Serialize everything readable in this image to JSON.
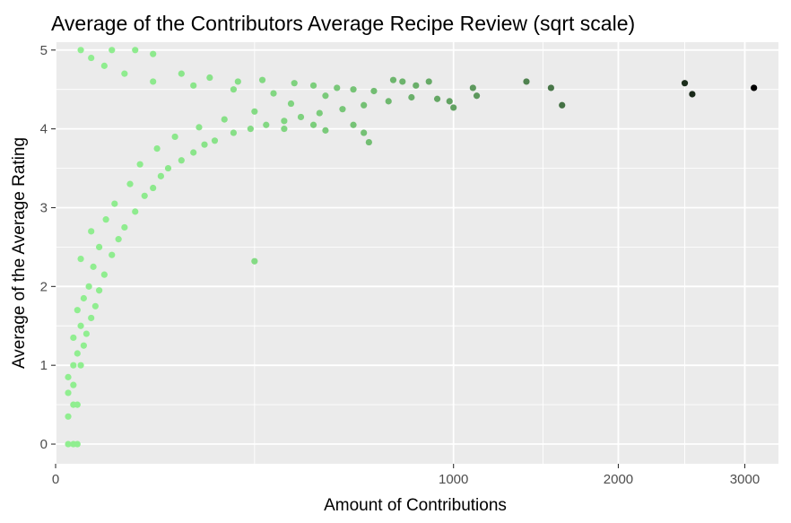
{
  "chart_data": {
    "type": "scatter",
    "title": "Average of the Contributors Average Recipe Review (sqrt scale)",
    "xlabel": "Amount of Contributions",
    "ylabel": "Average of the Average Rating",
    "x_scale": "sqrt",
    "xlim": [
      0,
      3300
    ],
    "ylim": [
      -0.25,
      5.1
    ],
    "x_ticks": [
      0,
      1000,
      2000,
      3000
    ],
    "x_tick_labels": [
      "0",
      "1000",
      "2000",
      "3000"
    ],
    "x_minor_ticks": [
      250,
      1500,
      2500
    ],
    "y_ticks": [
      0,
      1,
      2,
      3,
      4,
      5
    ],
    "y_tick_labels": [
      "0",
      "1",
      "2",
      "3",
      "4",
      "5"
    ],
    "grid": true,
    "legend": "none",
    "color_scale": {
      "low": "#90EE90",
      "high": "#000000",
      "variable": "Amount of Contributions"
    },
    "panel_background": "#EBEBEB",
    "grid_color": "#FFFFFF",
    "points": [
      {
        "x": 1,
        "y": 0
      },
      {
        "x": 2,
        "y": 0
      },
      {
        "x": 3,
        "y": 0
      },
      {
        "x": 1,
        "y": 0.35
      },
      {
        "x": 2,
        "y": 0.5
      },
      {
        "x": 3,
        "y": 0.5
      },
      {
        "x": 1,
        "y": 0.65
      },
      {
        "x": 2,
        "y": 0.75
      },
      {
        "x": 1,
        "y": 0.85
      },
      {
        "x": 2,
        "y": 1.0
      },
      {
        "x": 4,
        "y": 1.0
      },
      {
        "x": 3,
        "y": 1.15
      },
      {
        "x": 5,
        "y": 1.25
      },
      {
        "x": 2,
        "y": 1.35
      },
      {
        "x": 6,
        "y": 1.4
      },
      {
        "x": 4,
        "y": 1.5
      },
      {
        "x": 8,
        "y": 1.6
      },
      {
        "x": 3,
        "y": 1.7
      },
      {
        "x": 10,
        "y": 1.75
      },
      {
        "x": 5,
        "y": 1.85
      },
      {
        "x": 12,
        "y": 1.95
      },
      {
        "x": 7,
        "y": 2.0
      },
      {
        "x": 15,
        "y": 2.15
      },
      {
        "x": 9,
        "y": 2.25
      },
      {
        "x": 4,
        "y": 2.35
      },
      {
        "x": 20,
        "y": 2.4
      },
      {
        "x": 12,
        "y": 2.5
      },
      {
        "x": 25,
        "y": 2.6
      },
      {
        "x": 8,
        "y": 2.7
      },
      {
        "x": 30,
        "y": 2.75
      },
      {
        "x": 16,
        "y": 2.85
      },
      {
        "x": 40,
        "y": 2.95
      },
      {
        "x": 22,
        "y": 3.05
      },
      {
        "x": 50,
        "y": 3.15
      },
      {
        "x": 60,
        "y": 3.25
      },
      {
        "x": 35,
        "y": 3.3
      },
      {
        "x": 70,
        "y": 3.4
      },
      {
        "x": 80,
        "y": 3.5
      },
      {
        "x": 45,
        "y": 3.55
      },
      {
        "x": 100,
        "y": 3.6
      },
      {
        "x": 120,
        "y": 3.7
      },
      {
        "x": 65,
        "y": 3.75
      },
      {
        "x": 140,
        "y": 3.8
      },
      {
        "x": 160,
        "y": 3.85
      },
      {
        "x": 90,
        "y": 3.9
      },
      {
        "x": 200,
        "y": 3.95
      },
      {
        "x": 240,
        "y": 4.0
      },
      {
        "x": 130,
        "y": 4.02
      },
      {
        "x": 280,
        "y": 4.05
      },
      {
        "x": 330,
        "y": 4.1
      },
      {
        "x": 180,
        "y": 4.12
      },
      {
        "x": 380,
        "y": 4.15
      },
      {
        "x": 440,
        "y": 4.2
      },
      {
        "x": 250,
        "y": 4.22
      },
      {
        "x": 520,
        "y": 4.25
      },
      {
        "x": 600,
        "y": 4.3
      },
      {
        "x": 350,
        "y": 4.32
      },
      {
        "x": 700,
        "y": 4.35
      },
      {
        "x": 800,
        "y": 4.4
      },
      {
        "x": 460,
        "y": 4.42
      },
      {
        "x": 300,
        "y": 4.45
      },
      {
        "x": 200,
        "y": 4.5
      },
      {
        "x": 120,
        "y": 4.55
      },
      {
        "x": 60,
        "y": 4.6
      },
      {
        "x": 30,
        "y": 4.7
      },
      {
        "x": 15,
        "y": 4.8
      },
      {
        "x": 8,
        "y": 4.9
      },
      {
        "x": 4,
        "y": 5.0
      },
      {
        "x": 20,
        "y": 5.0
      },
      {
        "x": 40,
        "y": 5.0
      },
      {
        "x": 60,
        "y": 4.95
      },
      {
        "x": 100,
        "y": 4.7
      },
      {
        "x": 150,
        "y": 4.65
      },
      {
        "x": 210,
        "y": 4.6
      },
      {
        "x": 270,
        "y": 4.62
      },
      {
        "x": 360,
        "y": 4.58
      },
      {
        "x": 420,
        "y": 4.55
      },
      {
        "x": 500,
        "y": 4.52
      },
      {
        "x": 560,
        "y": 4.5
      },
      {
        "x": 640,
        "y": 4.48
      },
      {
        "x": 720,
        "y": 4.62
      },
      {
        "x": 760,
        "y": 4.6
      },
      {
        "x": 820,
        "y": 4.55
      },
      {
        "x": 880,
        "y": 4.6
      },
      {
        "x": 920,
        "y": 4.38
      },
      {
        "x": 980,
        "y": 4.35
      },
      {
        "x": 1000,
        "y": 4.27
      },
      {
        "x": 1100,
        "y": 4.52
      },
      {
        "x": 1120,
        "y": 4.42
      },
      {
        "x": 1400,
        "y": 4.6
      },
      {
        "x": 1550,
        "y": 4.52
      },
      {
        "x": 1620,
        "y": 4.3
      },
      {
        "x": 2500,
        "y": 4.58
      },
      {
        "x": 2560,
        "y": 4.44
      },
      {
        "x": 3080,
        "y": 4.52
      },
      {
        "x": 560,
        "y": 4.05
      },
      {
        "x": 600,
        "y": 3.95
      },
      {
        "x": 620,
        "y": 3.83
      },
      {
        "x": 330,
        "y": 4.0
      },
      {
        "x": 420,
        "y": 4.05
      },
      {
        "x": 460,
        "y": 3.98
      },
      {
        "x": 250,
        "y": 2.32
      }
    ]
  }
}
